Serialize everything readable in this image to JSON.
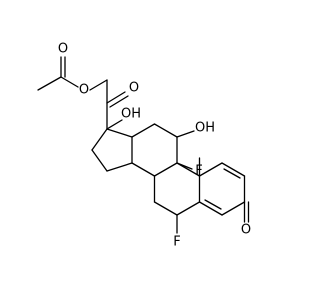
{
  "atoms": [
    {
      "label": "O"
    },
    {
      "label": "O"
    },
    {
      "label": "O"
    },
    {
      "label": "OH"
    },
    {
      "label": "OH"
    },
    {
      "label": "F"
    },
    {
      "label": "F"
    },
    {
      "label": "O"
    }
  ]
}
